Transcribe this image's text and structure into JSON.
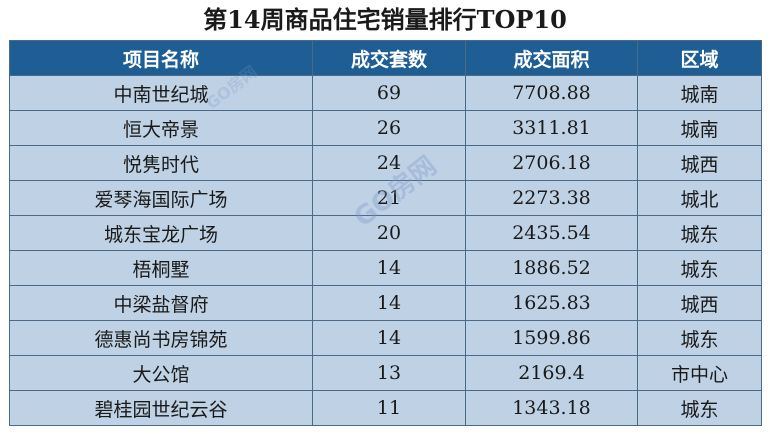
{
  "title": "第14周商品住宅销量排行TOP10",
  "table": {
    "headers": [
      "项目名称",
      "成交套数",
      "成交面积",
      "区域"
    ],
    "rows": [
      [
        "中南世纪城",
        "69",
        "7708.88",
        "城南"
      ],
      [
        "恒大帝景",
        "26",
        "3311.81",
        "城南"
      ],
      [
        "悦隽时代",
        "24",
        "2706.18",
        "城西"
      ],
      [
        "爱琴海国际广场",
        "21",
        "2273.38",
        "城北"
      ],
      [
        "城东宝龙广场",
        "20",
        "2435.54",
        "城东"
      ],
      [
        "梧桐墅",
        "14",
        "1886.52",
        "城东"
      ],
      [
        "中梁盐督府",
        "14",
        "1625.83",
        "城西"
      ],
      [
        "德惠尚书房锦苑",
        "14",
        "1599.86",
        "城东"
      ],
      [
        "大公馆",
        "13",
        "2169.4",
        "市中心"
      ],
      [
        "碧桂园世纪云谷",
        "11",
        "1343.18",
        "城东"
      ]
    ]
  },
  "watermark": "GO房网",
  "watermark_small": "GO房网",
  "colors": {
    "header_bg": "#1f5e94",
    "row_bg": "#bfd1e4",
    "border": "#4a6a88"
  }
}
